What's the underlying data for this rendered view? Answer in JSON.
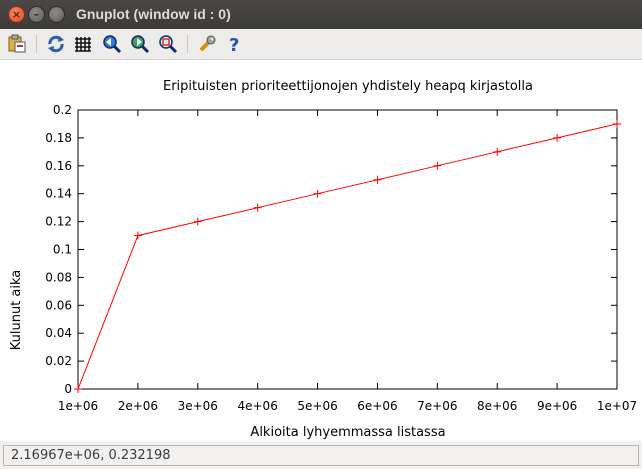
{
  "window": {
    "title": "Gnuplot (window id : 0)"
  },
  "toolbar": {
    "items": [
      {
        "name": "copy-clipboard-icon"
      },
      {
        "name": "replot-icon"
      },
      {
        "name": "grid-icon"
      },
      {
        "name": "zoom-previous-icon"
      },
      {
        "name": "zoom-next-icon"
      },
      {
        "name": "autoscale-icon"
      },
      {
        "name": "preferences-icon"
      },
      {
        "name": "help-icon"
      }
    ]
  },
  "chart_data": {
    "type": "line",
    "title": "Eripituisten prioriteettijonojen yhdistely heapq kirjastolla",
    "xlabel": "Alkioita lyhyemmassa listassa",
    "ylabel": "Kulunut aika",
    "xlim": [
      1000000,
      10000000
    ],
    "ylim": [
      0,
      0.2
    ],
    "x_ticks": [
      "1e+06",
      "2e+06",
      "3e+06",
      "4e+06",
      "5e+06",
      "6e+06",
      "7e+06",
      "8e+06",
      "9e+06",
      "1e+07"
    ],
    "y_ticks": [
      "0",
      "0.02",
      "0.04",
      "0.06",
      "0.08",
      "0.1",
      "0.12",
      "0.14",
      "0.16",
      "0.18",
      "0.2"
    ],
    "grid": false,
    "series": [
      {
        "color": "#ff0000",
        "marker": "plus",
        "x": [
          1000000,
          2000000,
          3000000,
          4000000,
          5000000,
          6000000,
          7000000,
          8000000,
          9000000,
          10000000
        ],
        "y": [
          0,
          0.11,
          0.12,
          0.13,
          0.14,
          0.15,
          0.16,
          0.17,
          0.18,
          0.19
        ]
      }
    ]
  },
  "status": {
    "coordinates": "2.16967e+06,  0.232198"
  }
}
